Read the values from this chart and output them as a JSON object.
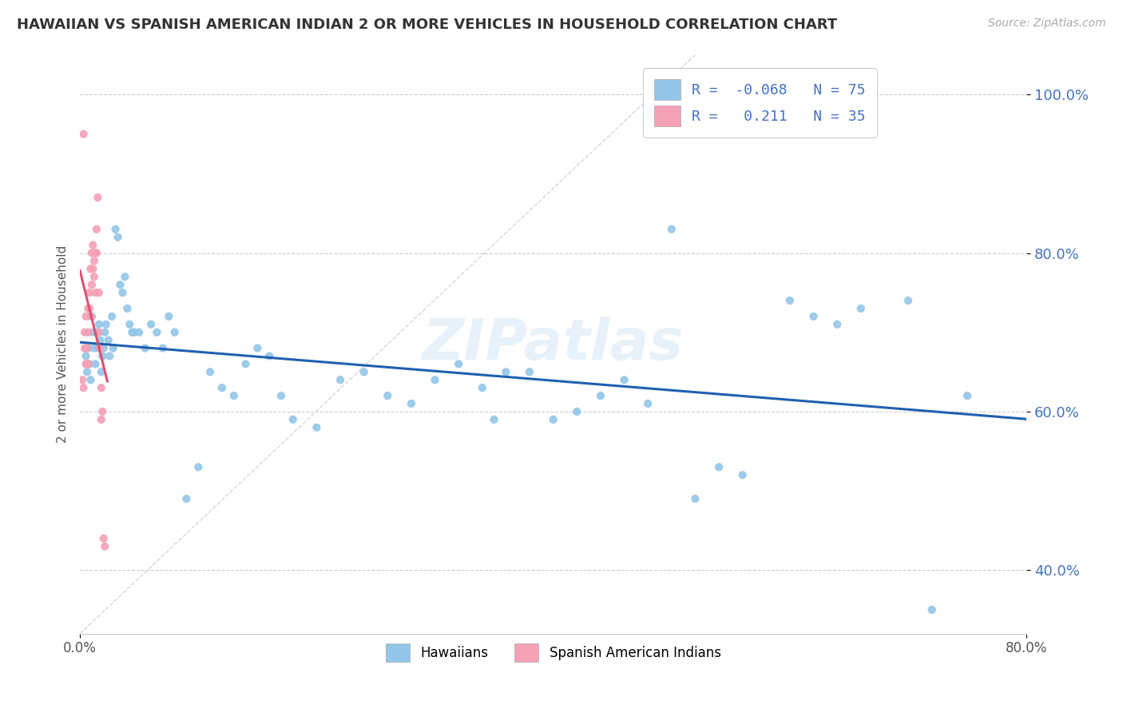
{
  "title": "HAWAIIAN VS SPANISH AMERICAN INDIAN 2 OR MORE VEHICLES IN HOUSEHOLD CORRELATION CHART",
  "source": "Source: ZipAtlas.com",
  "ylabel": "2 or more Vehicles in Household",
  "xlim": [
    0.0,
    0.8
  ],
  "ylim": [
    0.32,
    1.05
  ],
  "r_hawaiian": -0.068,
  "n_hawaiian": 75,
  "r_spanish": 0.211,
  "n_spanish": 35,
  "hawaiian_color": "#93c6e8",
  "spanish_color": "#f4a0b5",
  "hawaiian_line_color": "#2060b0",
  "spanish_line_color": "#e05070",
  "watermark_color": "#a0c8e8",
  "legend_hawaiians": "Hawaiians",
  "legend_spanish": "Spanish American Indians",
  "yticks": [
    0.4,
    0.6,
    0.8,
    1.0
  ],
  "ytick_labels": [
    "40.0%",
    "60.0%",
    "80.0%",
    "100.0%"
  ],
  "xtick_pos": [
    0.0,
    0.8
  ],
  "xtick_labels": [
    "0.0%",
    "80.0%"
  ],
  "hawaiian_x": [
    0.005,
    0.006,
    0.007,
    0.008,
    0.009,
    0.01,
    0.011,
    0.012,
    0.013,
    0.014,
    0.015,
    0.016,
    0.017,
    0.018,
    0.019,
    0.02,
    0.021,
    0.022,
    0.024,
    0.025,
    0.027,
    0.028,
    0.03,
    0.032,
    0.034,
    0.036,
    0.038,
    0.04,
    0.042,
    0.044,
    0.046,
    0.05,
    0.055,
    0.06,
    0.065,
    0.07,
    0.075,
    0.08,
    0.09,
    0.1,
    0.11,
    0.12,
    0.13,
    0.14,
    0.15,
    0.16,
    0.17,
    0.18,
    0.2,
    0.22,
    0.24,
    0.26,
    0.28,
    0.3,
    0.32,
    0.34,
    0.35,
    0.36,
    0.38,
    0.4,
    0.42,
    0.44,
    0.46,
    0.48,
    0.5,
    0.52,
    0.54,
    0.56,
    0.6,
    0.62,
    0.64,
    0.66,
    0.7,
    0.72,
    0.75
  ],
  "hawaiian_y": [
    0.67,
    0.65,
    0.68,
    0.66,
    0.64,
    0.72,
    0.7,
    0.68,
    0.66,
    0.7,
    0.68,
    0.71,
    0.69,
    0.65,
    0.67,
    0.68,
    0.7,
    0.71,
    0.69,
    0.67,
    0.72,
    0.68,
    0.83,
    0.82,
    0.76,
    0.75,
    0.77,
    0.73,
    0.71,
    0.7,
    0.7,
    0.7,
    0.68,
    0.71,
    0.7,
    0.68,
    0.72,
    0.7,
    0.49,
    0.53,
    0.65,
    0.63,
    0.62,
    0.66,
    0.68,
    0.67,
    0.62,
    0.59,
    0.58,
    0.64,
    0.65,
    0.62,
    0.61,
    0.64,
    0.66,
    0.63,
    0.59,
    0.65,
    0.65,
    0.59,
    0.6,
    0.62,
    0.64,
    0.61,
    0.83,
    0.49,
    0.53,
    0.52,
    0.74,
    0.72,
    0.71,
    0.73,
    0.74,
    0.35,
    0.62
  ],
  "spanish_x": [
    0.002,
    0.003,
    0.004,
    0.004,
    0.005,
    0.005,
    0.006,
    0.006,
    0.007,
    0.007,
    0.007,
    0.008,
    0.008,
    0.009,
    0.009,
    0.01,
    0.01,
    0.011,
    0.011,
    0.012,
    0.012,
    0.013,
    0.013,
    0.014,
    0.014,
    0.015,
    0.016,
    0.016,
    0.017,
    0.018,
    0.018,
    0.019,
    0.02,
    0.021,
    0.003
  ],
  "spanish_y": [
    0.64,
    0.63,
    0.68,
    0.7,
    0.66,
    0.72,
    0.66,
    0.68,
    0.7,
    0.73,
    0.66,
    0.73,
    0.75,
    0.72,
    0.78,
    0.76,
    0.8,
    0.78,
    0.81,
    0.77,
    0.79,
    0.75,
    0.8,
    0.8,
    0.83,
    0.87,
    0.7,
    0.75,
    0.68,
    0.59,
    0.63,
    0.6,
    0.44,
    0.43,
    0.95
  ]
}
